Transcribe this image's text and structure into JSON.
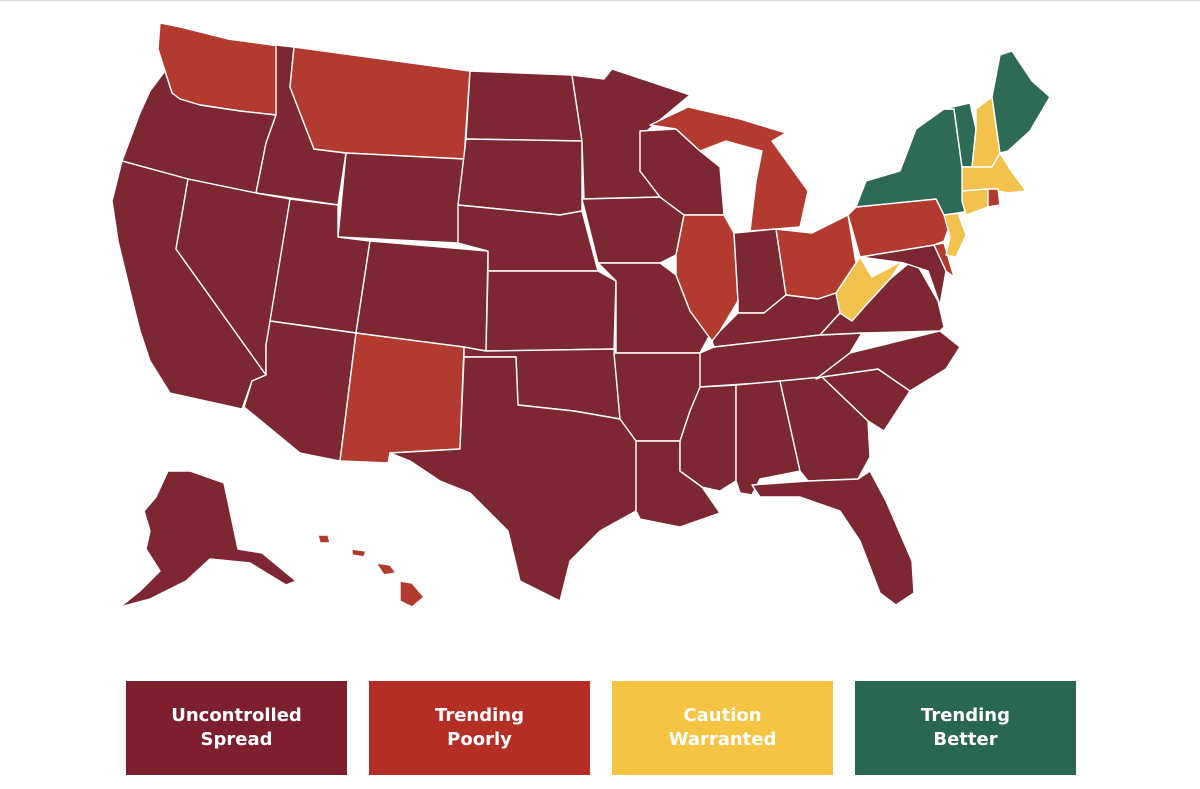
{
  "colors": {
    "uncontrolled": "#7c2731",
    "poorly": "#b23a2e",
    "caution": "#f2c24d",
    "better": "#2e6b57",
    "legend_uncontrolled": "#7e1f2e",
    "legend_poorly": "#b52e26",
    "legend_caution": "#f5c443",
    "legend_better": "#2a6753"
  },
  "legend": [
    {
      "label": "Uncontrolled\nSpread",
      "category": "uncontrolled"
    },
    {
      "label": "Trending\nPoorly",
      "category": "poorly"
    },
    {
      "label": "Caution\nWarranted",
      "category": "caution"
    },
    {
      "label": "Trending\nBetter",
      "category": "better"
    }
  ],
  "state_categories": {
    "WA": "poorly",
    "MT": "poorly",
    "MI": "poorly",
    "IL": "poorly",
    "OH": "poorly",
    "PA": "poorly",
    "NM": "poorly",
    "HI": "poorly",
    "RI": "poorly",
    "DE": "poorly",
    "NJ": "caution",
    "WV": "caution",
    "NH": "caution",
    "MA": "caution",
    "CT": "caution",
    "ME": "better",
    "NY": "better",
    "VT": "better",
    "OR": "uncontrolled",
    "CA": "uncontrolled",
    "ID": "uncontrolled",
    "NV": "uncontrolled",
    "UT": "uncontrolled",
    "AZ": "uncontrolled",
    "WY": "uncontrolled",
    "CO": "uncontrolled",
    "ND": "uncontrolled",
    "SD": "uncontrolled",
    "NE": "uncontrolled",
    "KS": "uncontrolled",
    "OK": "uncontrolled",
    "TX": "uncontrolled",
    "MN": "uncontrolled",
    "IA": "uncontrolled",
    "MO": "uncontrolled",
    "AR": "uncontrolled",
    "LA": "uncontrolled",
    "WI": "uncontrolled",
    "IN": "uncontrolled",
    "KY": "uncontrolled",
    "TN": "uncontrolled",
    "MS": "uncontrolled",
    "AL": "uncontrolled",
    "GA": "uncontrolled",
    "FL": "uncontrolled",
    "SC": "uncontrolled",
    "NC": "uncontrolled",
    "VA": "uncontrolled",
    "MD": "uncontrolled",
    "AK": "uncontrolled"
  }
}
